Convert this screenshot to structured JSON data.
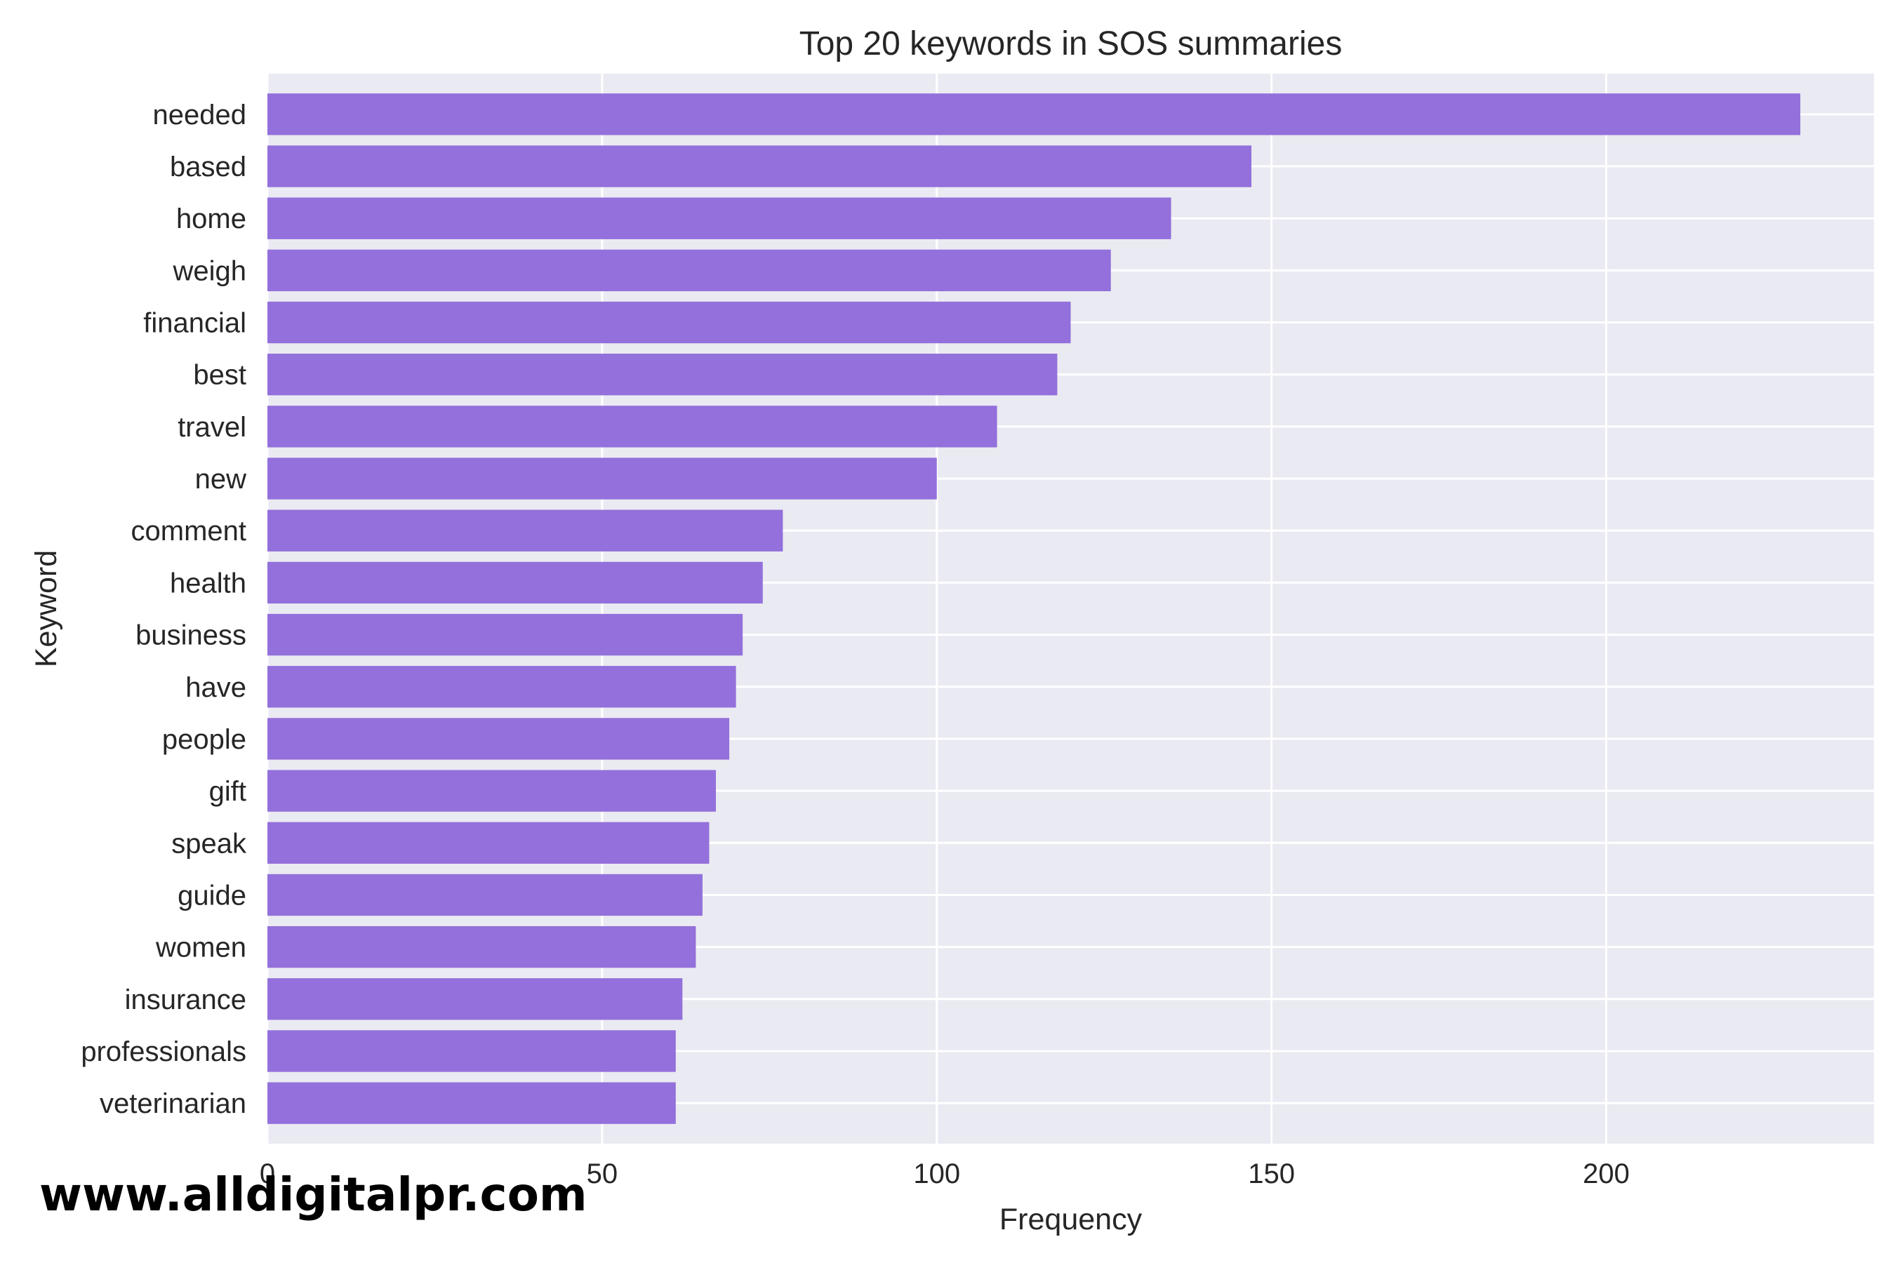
{
  "chart_data": {
    "type": "bar",
    "orientation": "horizontal",
    "title": "Top 20 keywords in SOS summaries",
    "xlabel": "Frequency",
    "ylabel": "Keyword",
    "xlim": [
      0,
      240
    ],
    "x_ticks": [
      0,
      50,
      100,
      150,
      200
    ],
    "grid": true,
    "categories": [
      "needed",
      "based",
      "home",
      "weigh",
      "financial",
      "best",
      "travel",
      "new",
      "comment",
      "health",
      "business",
      "have",
      "people",
      "gift",
      "speak",
      "guide",
      "women",
      "insurance",
      "professionals",
      "veterinarian"
    ],
    "values": [
      229,
      147,
      135,
      126,
      120,
      118,
      109,
      100,
      77,
      74,
      71,
      70,
      69,
      67,
      66,
      65,
      64,
      62,
      61,
      61
    ]
  },
  "colors": {
    "bar": "#9370DB",
    "plot_background": "#EAEAF2",
    "grid": "#FFFFFF"
  },
  "watermark": "www.alldigitalpr.com"
}
